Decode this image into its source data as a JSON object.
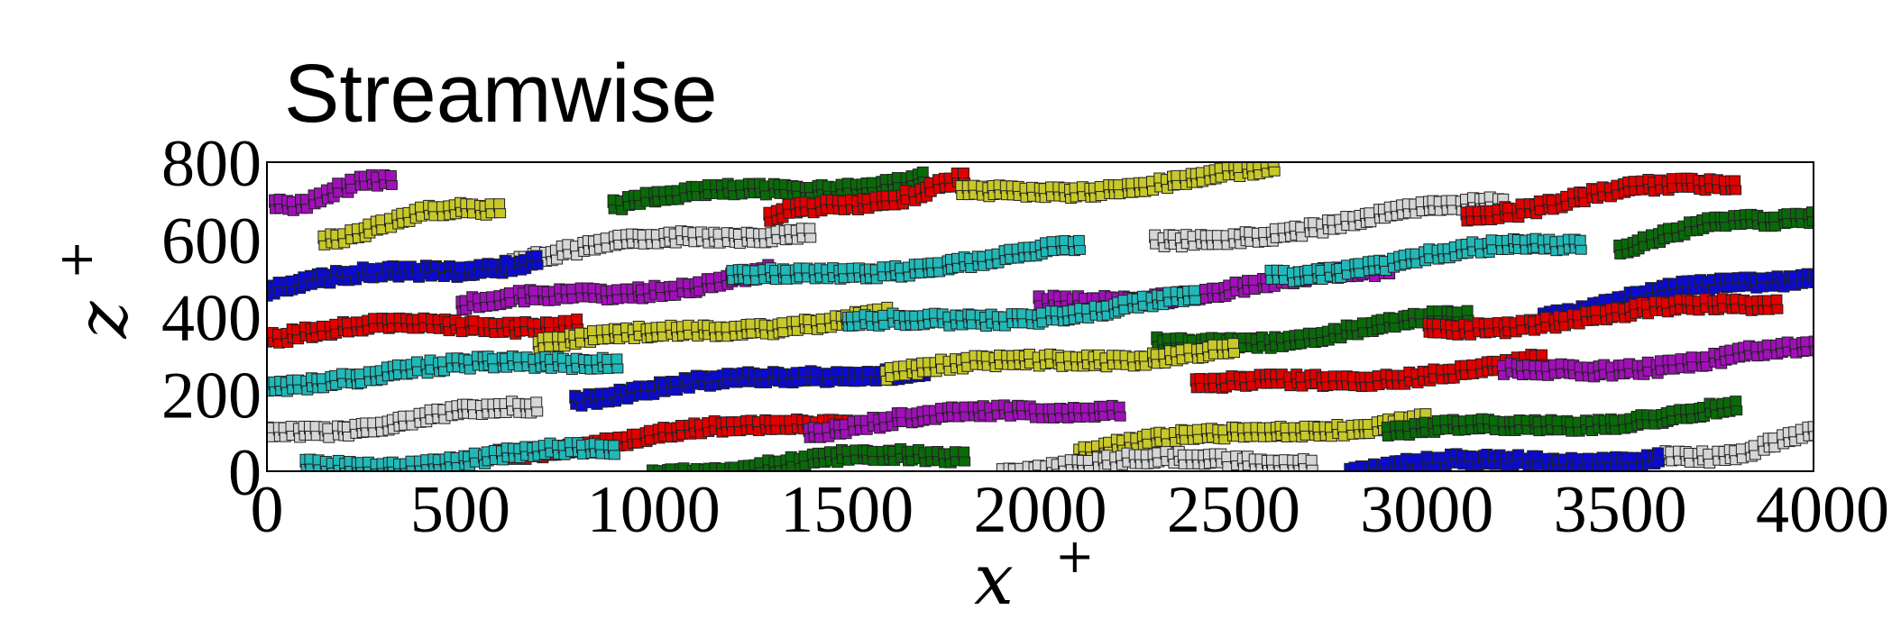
{
  "chart_data": {
    "type": "scatter",
    "title": "Streamwise",
    "xlabel": "x",
    "xlabel_superscript": "+",
    "ylabel": "z",
    "ylabel_superscript": "+",
    "xlim": [
      0,
      4000
    ],
    "ylim": [
      0,
      800
    ],
    "x_ticks": [
      0,
      500,
      1000,
      1500,
      2000,
      2500,
      3000,
      3500,
      4000
    ],
    "y_ticks": [
      0,
      200,
      400,
      600,
      800
    ],
    "x_tick_labels": [
      "0",
      "500",
      "1000",
      "1500",
      "2000",
      "2500",
      "3000",
      "3500",
      "4000"
    ],
    "y_tick_labels": [
      "0",
      "200",
      "400",
      "600",
      "800"
    ],
    "grid": false,
    "series_colors": [
      "#e00000",
      "#0a0ad0",
      "#0a6a0a",
      "#a010b8",
      "#c8c82a",
      "#22b8b8",
      "#d6d6d6"
    ],
    "structures": [
      {
        "x0": 20,
        "z0": 700,
        "x1": 320,
        "z1": 760,
        "color": 3
      },
      {
        "x0": 150,
        "z0": 620,
        "x1": 600,
        "z1": 700,
        "color": 4
      },
      {
        "x0": 620,
        "z0": 560,
        "x1": 1400,
        "z1": 640,
        "color": 6
      },
      {
        "x0": 900,
        "z0": 700,
        "x1": 1700,
        "z1": 770,
        "color": 2
      },
      {
        "x0": 1300,
        "z0": 660,
        "x1": 1800,
        "z1": 760,
        "color": 0
      },
      {
        "x0": 1800,
        "z0": 720,
        "x1": 2600,
        "z1": 780,
        "color": 4
      },
      {
        "x0": 2300,
        "z0": 600,
        "x1": 3200,
        "z1": 700,
        "color": 6
      },
      {
        "x0": 3100,
        "z0": 680,
        "x1": 3800,
        "z1": 760,
        "color": 0
      },
      {
        "x0": 3500,
        "z0": 600,
        "x1": 4000,
        "z1": 680,
        "color": 2
      },
      {
        "x0": 0,
        "z0": 480,
        "x1": 700,
        "z1": 560,
        "color": 1
      },
      {
        "x0": 500,
        "z0": 430,
        "x1": 1300,
        "z1": 520,
        "color": 3
      },
      {
        "x0": 1200,
        "z0": 500,
        "x1": 2100,
        "z1": 580,
        "color": 5
      },
      {
        "x0": 2000,
        "z0": 440,
        "x1": 2900,
        "z1": 520,
        "color": 3
      },
      {
        "x0": 2600,
        "z0": 520,
        "x1": 3400,
        "z1": 600,
        "color": 5
      },
      {
        "x0": 3300,
        "z0": 420,
        "x1": 4000,
        "z1": 520,
        "color": 1
      },
      {
        "x0": 0,
        "z0": 360,
        "x1": 800,
        "z1": 400,
        "color": 0
      },
      {
        "x0": 700,
        "z0": 330,
        "x1": 1600,
        "z1": 420,
        "color": 4
      },
      {
        "x0": 1500,
        "z0": 380,
        "x1": 2400,
        "z1": 450,
        "color": 5
      },
      {
        "x0": 2300,
        "z0": 330,
        "x1": 3100,
        "z1": 400,
        "color": 2
      },
      {
        "x0": 3000,
        "z0": 380,
        "x1": 3900,
        "z1": 440,
        "color": 0
      },
      {
        "x0": 0,
        "z0": 240,
        "x1": 900,
        "z1": 300,
        "color": 5
      },
      {
        "x0": 800,
        "z0": 200,
        "x1": 1700,
        "z1": 280,
        "color": 1
      },
      {
        "x0": 1600,
        "z0": 260,
        "x1": 2500,
        "z1": 330,
        "color": 4
      },
      {
        "x0": 2400,
        "z0": 220,
        "x1": 3300,
        "z1": 290,
        "color": 0
      },
      {
        "x0": 3200,
        "z0": 260,
        "x1": 4000,
        "z1": 320,
        "color": 3
      },
      {
        "x0": 0,
        "z0": 110,
        "x1": 700,
        "z1": 170,
        "color": 6
      },
      {
        "x0": 600,
        "z0": 60,
        "x1": 1500,
        "z1": 140,
        "color": 0
      },
      {
        "x0": 1400,
        "z0": 120,
        "x1": 2200,
        "z1": 180,
        "color": 3
      },
      {
        "x0": 2100,
        "z0": 60,
        "x1": 3000,
        "z1": 150,
        "color": 4
      },
      {
        "x0": 2900,
        "z0": 100,
        "x1": 3800,
        "z1": 170,
        "color": 2
      },
      {
        "x0": 3600,
        "z0": 30,
        "x1": 4000,
        "z1": 100,
        "color": 6
      },
      {
        "x0": 100,
        "z0": 20,
        "x1": 900,
        "z1": 60,
        "color": 5
      },
      {
        "x0": 1000,
        "z0": 10,
        "x1": 1800,
        "z1": 50,
        "color": 2
      },
      {
        "x0": 1900,
        "z0": 20,
        "x1": 2700,
        "z1": 40,
        "color": 6
      },
      {
        "x0": 2800,
        "z0": 10,
        "x1": 3600,
        "z1": 50,
        "color": 1
      }
    ]
  }
}
